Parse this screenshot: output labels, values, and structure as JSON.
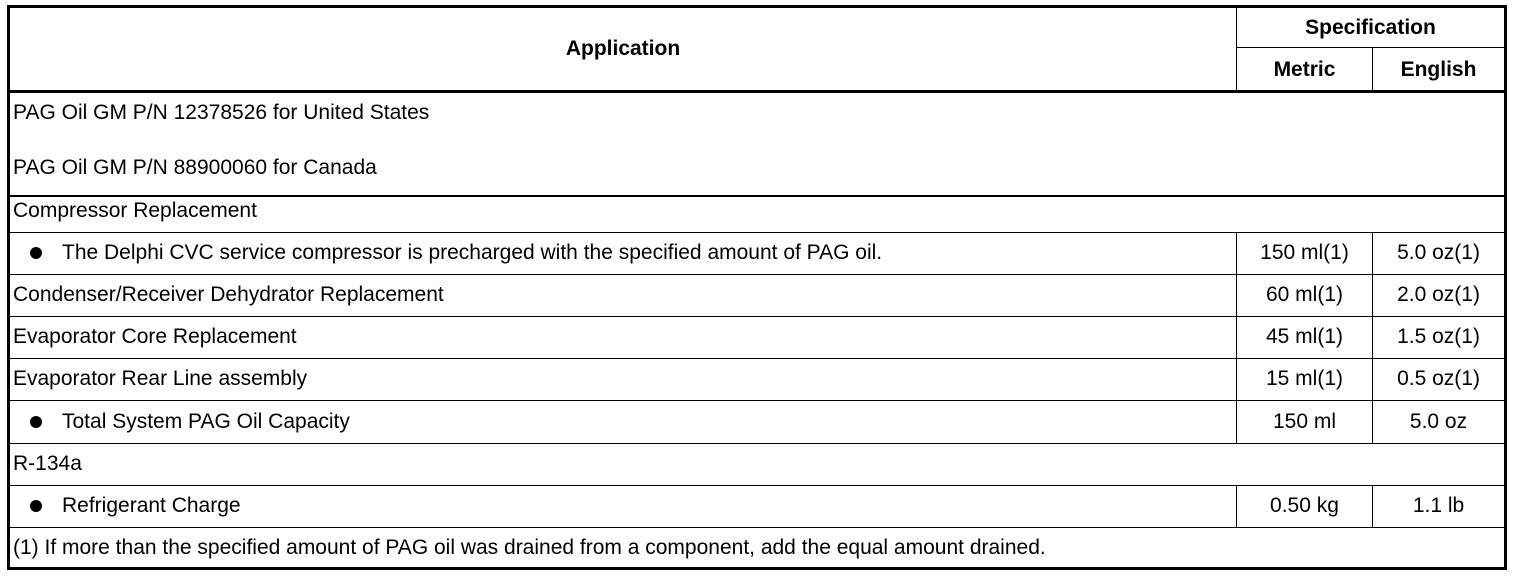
{
  "header": {
    "application": "Application",
    "specification": "Specification",
    "metric": "Metric",
    "english": "English"
  },
  "rows": [
    {
      "label": "PAG Oil GM P/N 12378526 for United States"
    },
    {
      "label": "PAG Oil GM P/N 88900060 for Canada"
    },
    {
      "label": "Compressor Replacement"
    },
    {
      "label": "The Delphi CVC service compressor is precharged with the specified amount of PAG oil.",
      "metric": "150 ml(1)",
      "english": "5.0 oz(1)",
      "bullet": true
    },
    {
      "label": "Condenser/Receiver Dehydrator Replacement",
      "metric": "60 ml(1)",
      "english": "2.0 oz(1)"
    },
    {
      "label": "Evaporator Core Replacement",
      "metric": "45 ml(1)",
      "english": "1.5 oz(1)"
    },
    {
      "label": "Evaporator Rear Line assembly",
      "metric": "15 ml(1)",
      "english": "0.5 oz(1)"
    },
    {
      "label": "Total System PAG Oil Capacity",
      "metric": "150 ml",
      "english": "5.0 oz",
      "bullet": true
    },
    {
      "label": "R-134a"
    },
    {
      "label": "Refrigerant Charge",
      "metric": "0.50 kg",
      "english": "1.1 lb",
      "bullet": true
    }
  ],
  "footnote": "(1) If more than the specified amount of PAG oil was drained from a component, add the equal amount drained."
}
